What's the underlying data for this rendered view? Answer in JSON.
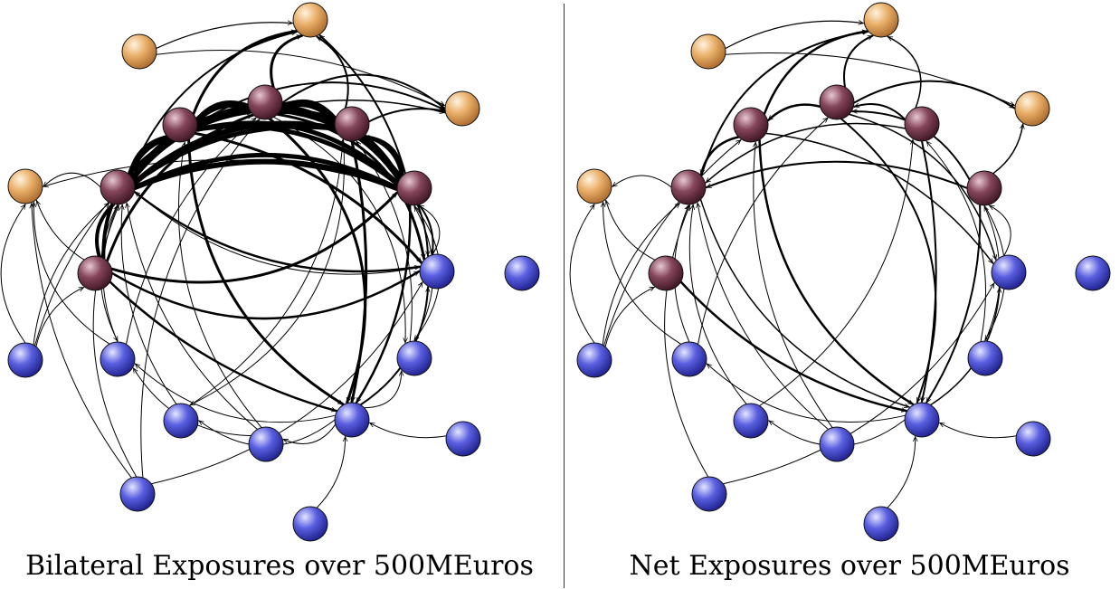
{
  "panels": [
    {
      "caption": "Bilateral Exposures over 500MEuros",
      "edges": [
        {
          "from": "P2",
          "to": "P3",
          "w": 6
        },
        {
          "from": "P3",
          "to": "P2",
          "w": 6
        },
        {
          "from": "P2",
          "to": "P4",
          "w": 7
        },
        {
          "from": "P4",
          "to": "P2",
          "w": 6
        },
        {
          "from": "P3",
          "to": "P4",
          "w": 7
        },
        {
          "from": "P4",
          "to": "P3",
          "w": 6
        },
        {
          "from": "P1",
          "to": "P2",
          "w": 6
        },
        {
          "from": "P2",
          "to": "P1",
          "w": 5
        },
        {
          "from": "P1",
          "to": "P3",
          "w": 6
        },
        {
          "from": "P3",
          "to": "P1",
          "w": 6
        },
        {
          "from": "P1",
          "to": "P4",
          "w": 5
        },
        {
          "from": "P4",
          "to": "P1",
          "w": 6
        },
        {
          "from": "P1",
          "to": "P5",
          "w": 6
        },
        {
          "from": "P5",
          "to": "P1",
          "w": 5
        },
        {
          "from": "P2",
          "to": "P5",
          "w": 5
        },
        {
          "from": "P5",
          "to": "P2",
          "w": 5
        },
        {
          "from": "P3",
          "to": "P5",
          "w": 5
        },
        {
          "from": "P5",
          "to": "P3",
          "w": 6
        },
        {
          "from": "P4",
          "to": "P5",
          "w": 4
        },
        {
          "from": "P5",
          "to": "P4",
          "w": 4
        },
        {
          "from": "P6",
          "to": "P1",
          "w": 4
        },
        {
          "from": "P6",
          "to": "P2",
          "w": 4
        },
        {
          "from": "P6",
          "to": "P3",
          "w": 3
        },
        {
          "from": "P6",
          "to": "P5",
          "w": 3
        },
        {
          "from": "P2",
          "to": "O2",
          "w": 3
        },
        {
          "from": "P3",
          "to": "O2",
          "w": 3
        },
        {
          "from": "P4",
          "to": "O2",
          "w": 2
        },
        {
          "from": "P5",
          "to": "O2",
          "w": 2
        },
        {
          "from": "P1",
          "to": "O2",
          "w": 2
        },
        {
          "from": "P3",
          "to": "O3",
          "w": 2
        },
        {
          "from": "P2",
          "to": "O3",
          "w": 2
        },
        {
          "from": "P4",
          "to": "O3",
          "w": 2
        },
        {
          "from": "P1",
          "to": "O3",
          "w": 1.5
        },
        {
          "from": "O1",
          "to": "O3",
          "w": 1
        },
        {
          "from": "O1",
          "to": "O2",
          "w": 1.2
        },
        {
          "from": "P1",
          "to": "O4",
          "w": 1
        },
        {
          "from": "P6",
          "to": "O4",
          "w": 1
        },
        {
          "from": "P5",
          "to": "O4",
          "w": 1
        },
        {
          "from": "P2",
          "to": "B6",
          "w": 3
        },
        {
          "from": "P3",
          "to": "B6",
          "w": 3
        },
        {
          "from": "P4",
          "to": "B6",
          "w": 3
        },
        {
          "from": "P5",
          "to": "B6",
          "w": 2.5
        },
        {
          "from": "P2",
          "to": "B10",
          "w": 3
        },
        {
          "from": "P3",
          "to": "B10",
          "w": 3
        },
        {
          "from": "P1",
          "to": "B10",
          "w": 2.5
        },
        {
          "from": "P6",
          "to": "B10",
          "w": 2.5
        },
        {
          "from": "P5",
          "to": "B10",
          "w": 2
        },
        {
          "from": "P4",
          "to": "B10",
          "w": 2
        },
        {
          "from": "B6",
          "to": "B10",
          "w": 2
        },
        {
          "from": "B6",
          "to": "B4",
          "w": 1
        },
        {
          "from": "B6",
          "to": "B2",
          "w": 1
        },
        {
          "from": "B6",
          "to": "B3",
          "w": 1
        },
        {
          "from": "B6",
          "to": "B5",
          "w": 1
        },
        {
          "from": "B8",
          "to": "B6",
          "w": 1
        },
        {
          "from": "B9",
          "to": "B6",
          "w": 1
        },
        {
          "from": "B1",
          "to": "P1",
          "w": 1
        },
        {
          "from": "B1",
          "to": "P6",
          "w": 1
        },
        {
          "from": "B1",
          "to": "O4",
          "w": 1
        },
        {
          "from": "B1",
          "to": "P2",
          "w": 1
        },
        {
          "from": "B2",
          "to": "P1",
          "w": 1
        },
        {
          "from": "B2",
          "to": "P3",
          "w": 1
        },
        {
          "from": "B4",
          "to": "P4",
          "w": 1
        },
        {
          "from": "B4",
          "to": "P1",
          "w": 1
        },
        {
          "from": "B5",
          "to": "P2",
          "w": 1
        },
        {
          "from": "B5",
          "to": "P1",
          "w": 1
        },
        {
          "from": "B7",
          "to": "P1",
          "w": 1
        },
        {
          "from": "B7",
          "to": "P3",
          "w": 1
        },
        {
          "from": "B3",
          "to": "P5",
          "w": 1
        },
        {
          "from": "B3",
          "to": "P4",
          "w": 1
        },
        {
          "from": "B11",
          "to": "P5",
          "w": 1
        },
        {
          "from": "B11",
          "to": "P1",
          "w": 1
        },
        {
          "from": "P5",
          "to": "B3",
          "w": 1
        },
        {
          "from": "P6",
          "to": "B6",
          "w": 2.5
        },
        {
          "from": "B7",
          "to": "B10",
          "w": 1
        },
        {
          "from": "P1",
          "to": "B2",
          "w": 1
        },
        {
          "from": "P4",
          "to": "B4",
          "w": 1
        },
        {
          "from": "B5",
          "to": "B2",
          "w": 1
        },
        {
          "from": "P3",
          "to": "B3",
          "w": 1
        },
        {
          "from": "B2",
          "to": "O4",
          "w": 1
        },
        {
          "from": "B7",
          "to": "O4",
          "w": 1
        }
      ]
    },
    {
      "caption": "Net Exposures over 500MEuros",
      "edges": [
        {
          "from": "P3",
          "to": "P2",
          "w": 2.5
        },
        {
          "from": "P2",
          "to": "P1",
          "w": 2.5
        },
        {
          "from": "P4",
          "to": "P3",
          "w": 2
        },
        {
          "from": "P5",
          "to": "P3",
          "w": 2
        },
        {
          "from": "P5",
          "to": "P1",
          "w": 2
        },
        {
          "from": "P4",
          "to": "P1",
          "w": 1.5
        },
        {
          "from": "P2",
          "to": "O2",
          "w": 2.5
        },
        {
          "from": "P1",
          "to": "O2",
          "w": 2
        },
        {
          "from": "P3",
          "to": "O2",
          "w": 2
        },
        {
          "from": "P4",
          "to": "O2",
          "w": 1.5
        },
        {
          "from": "P3",
          "to": "O3",
          "w": 2
        },
        {
          "from": "P5",
          "to": "O3",
          "w": 1.5
        },
        {
          "from": "O1",
          "to": "O3",
          "w": 1
        },
        {
          "from": "O1",
          "to": "O2",
          "w": 1.2
        },
        {
          "from": "P1",
          "to": "O4",
          "w": 1
        },
        {
          "from": "P6",
          "to": "O4",
          "w": 1
        },
        {
          "from": "P2",
          "to": "B6",
          "w": 2.5
        },
        {
          "from": "P3",
          "to": "B6",
          "w": 2
        },
        {
          "from": "P4",
          "to": "B6",
          "w": 2
        },
        {
          "from": "P5",
          "to": "B6",
          "w": 2
        },
        {
          "from": "P1",
          "to": "B6",
          "w": 1.5
        },
        {
          "from": "P6",
          "to": "B6",
          "w": 2.5
        },
        {
          "from": "B6",
          "to": "B10",
          "w": 1.5
        },
        {
          "from": "P2",
          "to": "B10",
          "w": 1.5
        },
        {
          "from": "P3",
          "to": "B10",
          "w": 1.5
        },
        {
          "from": "B6",
          "to": "B4",
          "w": 1
        },
        {
          "from": "B6",
          "to": "B2",
          "w": 1
        },
        {
          "from": "B8",
          "to": "B6",
          "w": 1
        },
        {
          "from": "B9",
          "to": "B6",
          "w": 1
        },
        {
          "from": "B1",
          "to": "P1",
          "w": 1
        },
        {
          "from": "B1",
          "to": "P6",
          "w": 1
        },
        {
          "from": "B1",
          "to": "O4",
          "w": 1
        },
        {
          "from": "B1",
          "to": "P2",
          "w": 1
        },
        {
          "from": "B2",
          "to": "P1",
          "w": 1
        },
        {
          "from": "B2",
          "to": "P3",
          "w": 1
        },
        {
          "from": "B4",
          "to": "P4",
          "w": 1
        },
        {
          "from": "B5",
          "to": "P2",
          "w": 1
        },
        {
          "from": "B7",
          "to": "P1",
          "w": 1
        },
        {
          "from": "B3",
          "to": "P5",
          "w": 1
        },
        {
          "from": "B11",
          "to": "P5",
          "w": 1
        },
        {
          "from": "P5",
          "to": "B3",
          "w": 1
        },
        {
          "from": "B7",
          "to": "B10",
          "w": 1
        },
        {
          "from": "B5",
          "to": "P1",
          "w": 1
        },
        {
          "from": "B3",
          "to": "P4",
          "w": 1
        },
        {
          "from": "B2",
          "to": "O4",
          "w": 1
        },
        {
          "from": "B4",
          "to": "P1",
          "w": 1
        }
      ]
    }
  ],
  "node_groups": [
    {
      "group": "orange",
      "ids": [
        "O1",
        "O2",
        "O3",
        "O4"
      ],
      "color": "#e8a860"
    },
    {
      "group": "purple",
      "ids": [
        "P1",
        "P2",
        "P3",
        "P4",
        "P5",
        "P6"
      ],
      "color": "#7a3a4c"
    },
    {
      "group": "blue",
      "ids": [
        "B1",
        "B2",
        "B3",
        "B4",
        "B5",
        "B6",
        "B7",
        "B8",
        "B9",
        "B10",
        "B11",
        "B12"
      ],
      "color": "#4b4fd0"
    }
  ]
}
